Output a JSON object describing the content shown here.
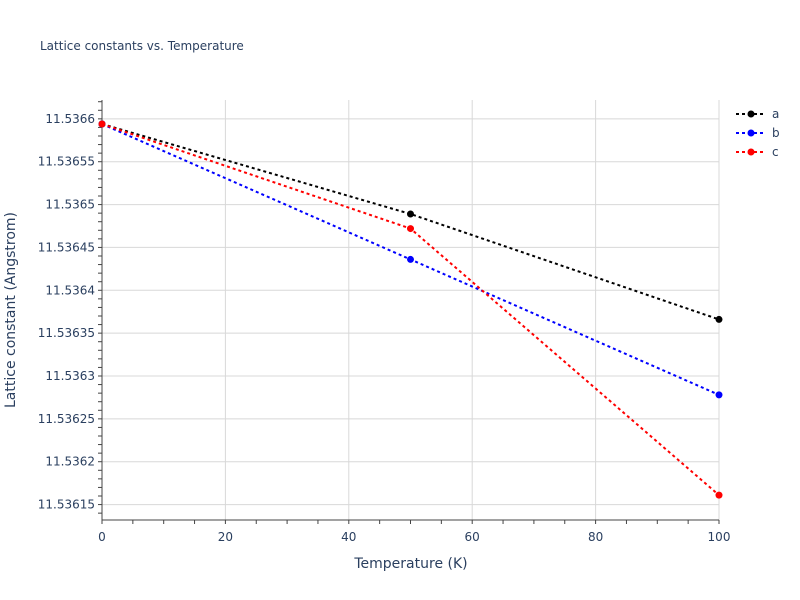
{
  "chart_data": {
    "type": "line",
    "title": "Lattice constants vs. Temperature",
    "xlabel": "Temperature (K)",
    "ylabel": "Lattice constant (Angstrom)",
    "xlim": [
      0,
      100
    ],
    "ylim": [
      11.536132,
      11.536622
    ],
    "x_ticks": [
      0,
      20,
      40,
      60,
      80,
      100
    ],
    "y_ticks": [
      11.53615,
      11.5362,
      11.53625,
      11.5363,
      11.53635,
      11.5364,
      11.53645,
      11.5365,
      11.53655,
      11.5366
    ],
    "grid": true,
    "legend_position": "top-right",
    "line_style": "dotted",
    "x": [
      0,
      50,
      100
    ],
    "series": [
      {
        "name": "a",
        "color": "#000000",
        "values": [
          11.536594,
          11.536489,
          11.536366
        ]
      },
      {
        "name": "b",
        "color": "#0000ff",
        "values": [
          11.536594,
          11.536436,
          11.536278
        ]
      },
      {
        "name": "c",
        "color": "#ff0000",
        "values": [
          11.536594,
          11.536472,
          11.536161
        ]
      }
    ]
  }
}
